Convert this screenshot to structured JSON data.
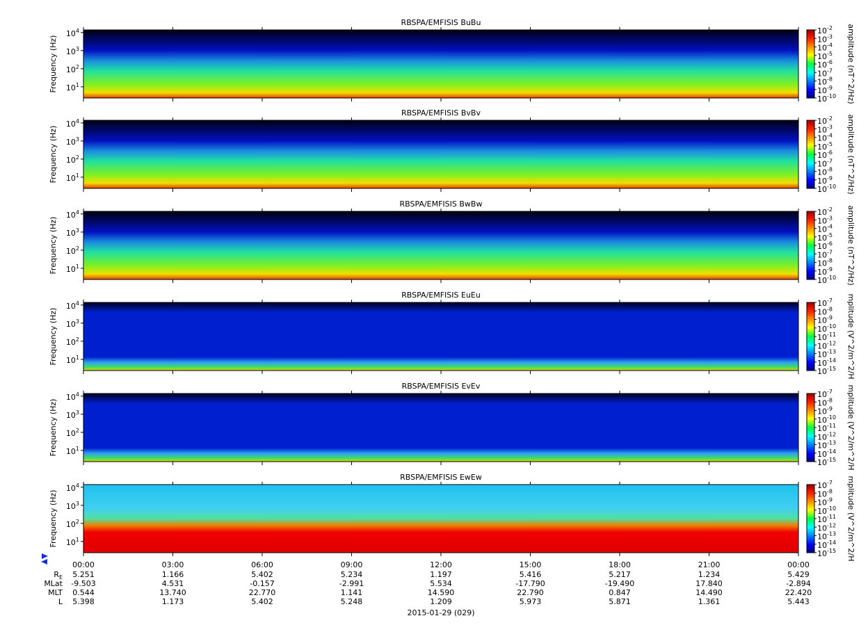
{
  "chart_data": [
    {
      "type": "spectrogram",
      "title": "RBSPA/EMFISIS  BuBu",
      "ylabel": "Frequency (Hz)",
      "ylog": true,
      "ylim": [
        2.4,
        14000
      ],
      "yticks": [
        {
          "value": 10,
          "label": "10",
          "exp": "1"
        },
        {
          "value": 100,
          "label": "10",
          "exp": "2"
        },
        {
          "value": 1000,
          "label": "10",
          "exp": "3"
        },
        {
          "value": 10000,
          "label": "10",
          "exp": "4"
        }
      ],
      "zlabel": "amplitude (nT^2/Hz)",
      "zlim": [
        1e-10,
        0.01
      ],
      "zticks": [
        {
          "value": 1e-10,
          "label": "10",
          "exp": "-10"
        },
        {
          "value": 1e-09,
          "label": "10",
          "exp": "-9"
        },
        {
          "value": 1e-08,
          "label": "10",
          "exp": "-8"
        },
        {
          "value": 1e-07,
          "label": "10",
          "exp": "-7"
        },
        {
          "value": 1e-06,
          "label": "10",
          "exp": "-6"
        },
        {
          "value": 1e-05,
          "label": "10",
          "exp": "-5"
        },
        {
          "value": 0.0001,
          "label": "10",
          "exp": "-4"
        },
        {
          "value": 0.001,
          "label": "10",
          "exp": "-3"
        },
        {
          "value": 0.01,
          "label": "10",
          "exp": "-2"
        }
      ]
    },
    {
      "type": "spectrogram",
      "title": "RBSPA/EMFISIS  BvBv",
      "ylabel": "Frequency (Hz)",
      "ylog": true,
      "ylim": [
        2.4,
        14000
      ],
      "yticks": [
        {
          "value": 10,
          "label": "10",
          "exp": "1"
        },
        {
          "value": 100,
          "label": "10",
          "exp": "2"
        },
        {
          "value": 1000,
          "label": "10",
          "exp": "3"
        },
        {
          "value": 10000,
          "label": "10",
          "exp": "4"
        }
      ],
      "zlabel": "amplitude (nT^2/Hz)",
      "zlim": [
        1e-10,
        0.01
      ],
      "zticks": [
        {
          "value": 1e-10,
          "label": "10",
          "exp": "-10"
        },
        {
          "value": 1e-09,
          "label": "10",
          "exp": "-9"
        },
        {
          "value": 1e-08,
          "label": "10",
          "exp": "-8"
        },
        {
          "value": 1e-07,
          "label": "10",
          "exp": "-7"
        },
        {
          "value": 1e-06,
          "label": "10",
          "exp": "-6"
        },
        {
          "value": 1e-05,
          "label": "10",
          "exp": "-5"
        },
        {
          "value": 0.0001,
          "label": "10",
          "exp": "-4"
        },
        {
          "value": 0.001,
          "label": "10",
          "exp": "-3"
        },
        {
          "value": 0.01,
          "label": "10",
          "exp": "-2"
        }
      ]
    },
    {
      "type": "spectrogram",
      "title": "RBSPA/EMFISIS  BwBw",
      "ylabel": "Frequency (Hz)",
      "ylog": true,
      "ylim": [
        2.4,
        14000
      ],
      "yticks": [
        {
          "value": 10,
          "label": "10",
          "exp": "1"
        },
        {
          "value": 100,
          "label": "10",
          "exp": "2"
        },
        {
          "value": 1000,
          "label": "10",
          "exp": "3"
        },
        {
          "value": 10000,
          "label": "10",
          "exp": "4"
        }
      ],
      "zlabel": "amplitude (nT^2/Hz)",
      "zlim": [
        1e-10,
        0.01
      ],
      "zticks": [
        {
          "value": 1e-10,
          "label": "10",
          "exp": "-10"
        },
        {
          "value": 1e-09,
          "label": "10",
          "exp": "-9"
        },
        {
          "value": 1e-08,
          "label": "10",
          "exp": "-8"
        },
        {
          "value": 1e-07,
          "label": "10",
          "exp": "-7"
        },
        {
          "value": 1e-06,
          "label": "10",
          "exp": "-6"
        },
        {
          "value": 1e-05,
          "label": "10",
          "exp": "-5"
        },
        {
          "value": 0.0001,
          "label": "10",
          "exp": "-4"
        },
        {
          "value": 0.001,
          "label": "10",
          "exp": "-3"
        },
        {
          "value": 0.01,
          "label": "10",
          "exp": "-2"
        }
      ]
    },
    {
      "type": "spectrogram",
      "title": "RBSPA/EMFISIS  EuEu",
      "ylabel": "Frequency (Hz)",
      "ylog": true,
      "ylim": [
        2.4,
        14000
      ],
      "yticks": [
        {
          "value": 10,
          "label": "10",
          "exp": "1"
        },
        {
          "value": 100,
          "label": "10",
          "exp": "2"
        },
        {
          "value": 1000,
          "label": "10",
          "exp": "3"
        },
        {
          "value": 10000,
          "label": "10",
          "exp": "4"
        }
      ],
      "zlabel": "mplitude (V^2/m^2/H",
      "zlim": [
        1e-15,
        1e-07
      ],
      "zticks": [
        {
          "value": 1e-15,
          "label": "10",
          "exp": "-15"
        },
        {
          "value": 1e-14,
          "label": "10",
          "exp": "-14"
        },
        {
          "value": 1e-13,
          "label": "10",
          "exp": "-13"
        },
        {
          "value": 1e-12,
          "label": "10",
          "exp": "-12"
        },
        {
          "value": 1e-11,
          "label": "10",
          "exp": "-11"
        },
        {
          "value": 1e-10,
          "label": "10",
          "exp": "-10"
        },
        {
          "value": 1e-09,
          "label": "10",
          "exp": "-9"
        },
        {
          "value": 1e-08,
          "label": "10",
          "exp": "-8"
        },
        {
          "value": 1e-07,
          "label": "10",
          "exp": "-7"
        }
      ]
    },
    {
      "type": "spectrogram",
      "title": "RBSPA/EMFISIS  EvEv",
      "ylabel": "Frequency (Hz)",
      "ylog": true,
      "ylim": [
        2.4,
        14000
      ],
      "yticks": [
        {
          "value": 10,
          "label": "10",
          "exp": "1"
        },
        {
          "value": 100,
          "label": "10",
          "exp": "2"
        },
        {
          "value": 1000,
          "label": "10",
          "exp": "3"
        },
        {
          "value": 10000,
          "label": "10",
          "exp": "4"
        }
      ],
      "zlabel": "mplitude (V^2/m^2/H",
      "zlim": [
        1e-15,
        1e-07
      ],
      "zticks": [
        {
          "value": 1e-15,
          "label": "10",
          "exp": "-15"
        },
        {
          "value": 1e-14,
          "label": "10",
          "exp": "-14"
        },
        {
          "value": 1e-13,
          "label": "10",
          "exp": "-13"
        },
        {
          "value": 1e-12,
          "label": "10",
          "exp": "-12"
        },
        {
          "value": 1e-11,
          "label": "10",
          "exp": "-11"
        },
        {
          "value": 1e-10,
          "label": "10",
          "exp": "-10"
        },
        {
          "value": 1e-09,
          "label": "10",
          "exp": "-9"
        },
        {
          "value": 1e-08,
          "label": "10",
          "exp": "-8"
        },
        {
          "value": 1e-07,
          "label": "10",
          "exp": "-7"
        }
      ]
    },
    {
      "type": "spectrogram",
      "title": "RBSPA/EMFISIS  EwEw",
      "ylabel": "Frequency (Hz)",
      "ylog": true,
      "ylim": [
        2.4,
        14000
      ],
      "yticks": [
        {
          "value": 10,
          "label": "10",
          "exp": "1"
        },
        {
          "value": 100,
          "label": "10",
          "exp": "2"
        },
        {
          "value": 1000,
          "label": "10",
          "exp": "3"
        },
        {
          "value": 10000,
          "label": "10",
          "exp": "4"
        }
      ],
      "zlabel": "mplitude (V^2/m^2/H",
      "zlim": [
        1e-15,
        1e-07
      ],
      "zticks": [
        {
          "value": 1e-15,
          "label": "10",
          "exp": "-15"
        },
        {
          "value": 1e-14,
          "label": "10",
          "exp": "-14"
        },
        {
          "value": 1e-13,
          "label": "10",
          "exp": "-13"
        },
        {
          "value": 1e-12,
          "label": "10",
          "exp": "-12"
        },
        {
          "value": 1e-11,
          "label": "10",
          "exp": "-11"
        },
        {
          "value": 1e-10,
          "label": "10",
          "exp": "-10"
        },
        {
          "value": 1e-09,
          "label": "10",
          "exp": "-9"
        },
        {
          "value": 1e-08,
          "label": "10",
          "exp": "-8"
        },
        {
          "value": 1e-07,
          "label": "10",
          "exp": "-7"
        }
      ]
    }
  ],
  "time_axis": {
    "xlim": [
      0,
      24
    ],
    "xticks": [
      {
        "value": 0,
        "label": "00:00"
      },
      {
        "value": 3,
        "label": "03:00"
      },
      {
        "value": 6,
        "label": "06:00"
      },
      {
        "value": 9,
        "label": "09:00"
      },
      {
        "value": 12,
        "label": "12:00"
      },
      {
        "value": 15,
        "label": "15:00"
      },
      {
        "value": 18,
        "label": "18:00"
      },
      {
        "value": 21,
        "label": "21:00"
      },
      {
        "value": 24,
        "label": "00:00"
      }
    ],
    "date": "2015-01-29 (029)"
  },
  "ephemeris": [
    {
      "name": "R",
      "sub": "E",
      "values": [
        "5.251",
        "1.166",
        "5.402",
        "5.234",
        "1.197",
        "5.416",
        "5.217",
        "1.234",
        "5.429"
      ]
    },
    {
      "name": "MLat",
      "values": [
        "-9.503",
        "4.531",
        "-0.157",
        "-2.991",
        "5.534",
        "-17.790",
        "-19.490",
        "17.840",
        "-2.894"
      ]
    },
    {
      "name": "MLT",
      "values": [
        "0.544",
        "13.740",
        "22.770",
        "1.141",
        "14.590",
        "22.790",
        "0.847",
        "14.490",
        "22.420"
      ]
    },
    {
      "name": "L",
      "values": [
        "5.398",
        "1.173",
        "5.402",
        "5.248",
        "1.209",
        "5.973",
        "5.871",
        "1.361",
        "5.443"
      ]
    }
  ]
}
